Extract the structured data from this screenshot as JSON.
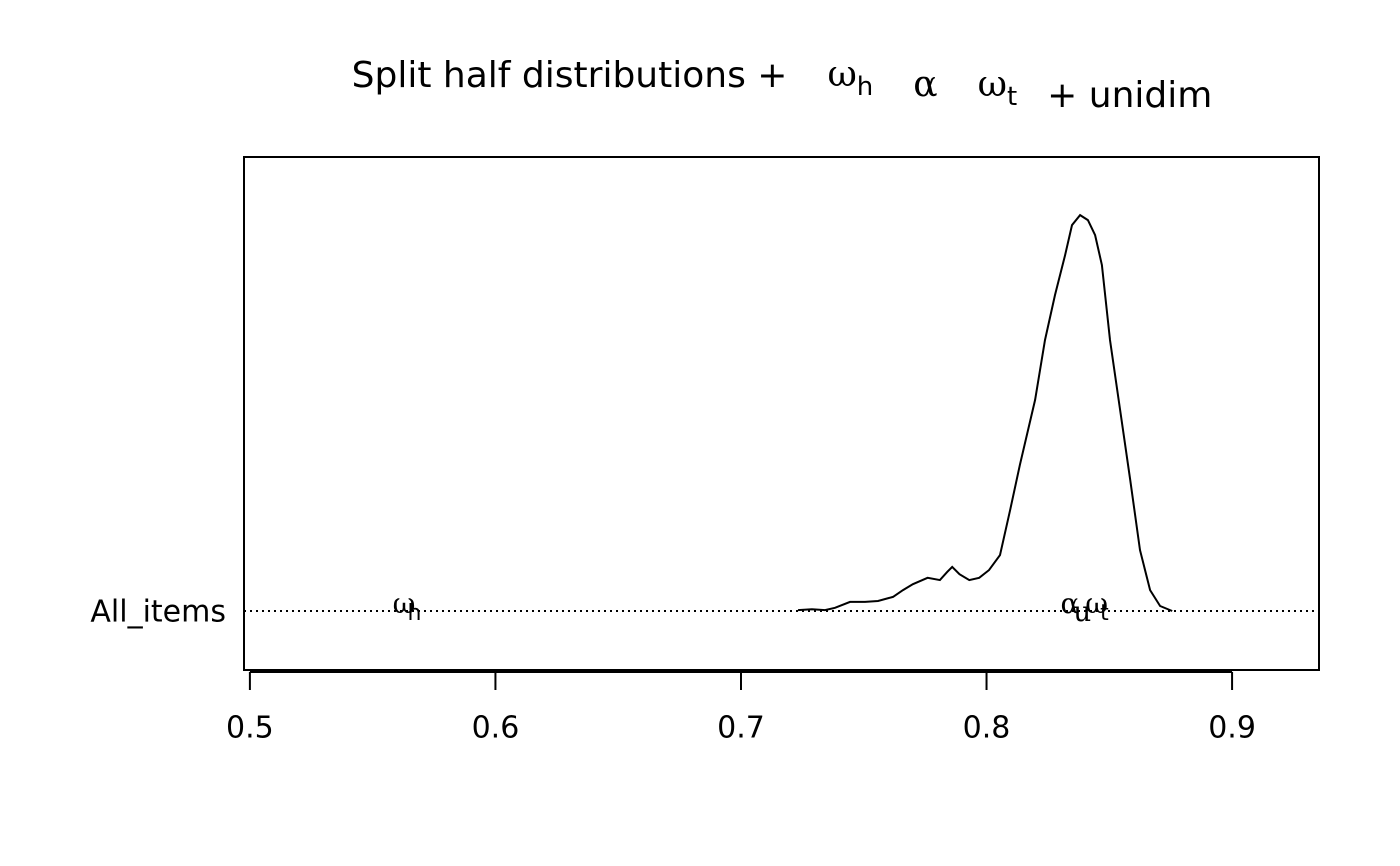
{
  "chart_data": {
    "type": "line",
    "title": {
      "text": "Split half distributions +",
      "symbols": [
        {
          "label": "ω",
          "sub": "h"
        },
        {
          "label": "α"
        },
        {
          "label": "ω",
          "sub": "t"
        }
      ],
      "tail": "+ unidim"
    },
    "categories": [
      "All_items"
    ],
    "xlim": [
      0.4976,
      0.9354
    ],
    "ylim": [
      -0.13,
      1
    ],
    "xticks": [
      0.5,
      0.6,
      0.7,
      0.8,
      0.9
    ],
    "series": [
      {
        "color": "#000000",
        "x": [
          0.7232,
          0.7289,
          0.7342,
          0.7383,
          0.7444,
          0.7505,
          0.7558,
          0.7619,
          0.766,
          0.77,
          0.776,
          0.781,
          0.784,
          0.786,
          0.789,
          0.793,
          0.797,
          0.801,
          0.8055,
          0.8096,
          0.8136,
          0.8198,
          0.8238,
          0.8279,
          0.832,
          0.8348,
          0.8381,
          0.8413,
          0.8442,
          0.847,
          0.8503,
          0.8544,
          0.8585,
          0.8625,
          0.8666,
          0.8707,
          0.8756
        ],
        "values": [
          0.002,
          0.004,
          0.002,
          0.007,
          0.02,
          0.02,
          0.022,
          0.031,
          0.046,
          0.059,
          0.073,
          0.068,
          0.086,
          0.097,
          0.081,
          0.068,
          0.073,
          0.09,
          0.123,
          0.222,
          0.322,
          0.465,
          0.597,
          0.696,
          0.784,
          0.85,
          0.872,
          0.861,
          0.828,
          0.762,
          0.597,
          0.443,
          0.289,
          0.134,
          0.046,
          0.011,
          0
        ]
      }
    ],
    "annotations": [
      {
        "label": "ω",
        "sub": "h",
        "x": 0.564
      },
      {
        "label": "α",
        "x": 0.834
      },
      {
        "label": "u",
        "x": 0.839
      },
      {
        "label": "ω",
        "sub": "t",
        "x": 0.845
      }
    ]
  }
}
